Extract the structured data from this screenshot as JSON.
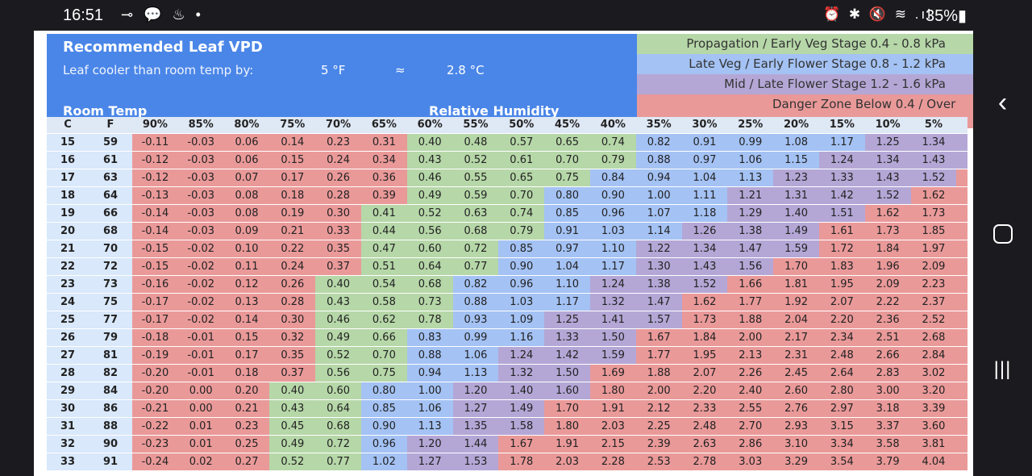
{
  "status_bar": {
    "time": "16:51",
    "left_icons": "⊸ 💬 ♨ •",
    "right_icons": "⏰ ✱ 🔇 ≋ .ıl",
    "battery": "35%▮"
  },
  "sheet": {
    "title": "Recommended Leaf VPD",
    "subtitle": "Leaf cooler than room temp by:",
    "offset_f": "5 °F",
    "approx": "≈",
    "offset_c": "2.8 °C",
    "room_temp_label": "Room Temp",
    "rh_label": "Relative Humidity",
    "legend": [
      {
        "label": "Propagation / Early Veg Stage 0.4 - 0.8 kPa",
        "color": "#b6d7a8"
      },
      {
        "label": "Late Veg / Early Flower Stage 0.8 - 1.2 kPa",
        "color": "#a4c2f4"
      },
      {
        "label": "Mid / Late Flower Stage 1.2 - 1.6 kPa",
        "color": "#b4a7d6"
      },
      {
        "label": "Danger Zone  Below 0.4 / Over",
        "color": "#ea9999"
      }
    ],
    "col_c": "C",
    "col_f": "F",
    "humidity": [
      "90%",
      "85%",
      "80%",
      "75%",
      "70%",
      "65%",
      "60%",
      "55%",
      "50%",
      "45%",
      "40%",
      "35%",
      "30%",
      "25%",
      "20%",
      "15%",
      "10%",
      "5%"
    ],
    "rows": [
      {
        "c": "15",
        "f": "59",
        "v": [
          "-0.11",
          "-0.03",
          "0.06",
          "0.14",
          "0.23",
          "0.31",
          "0.40",
          "0.48",
          "0.57",
          "0.65",
          "0.74",
          "0.82",
          "0.91",
          "0.99",
          "1.08",
          "1.17",
          "1.25",
          "1.34"
        ],
        "z": "rrrrrrrgggggbbbbppppp"
      },
      {
        "c": "16",
        "f": "61",
        "v": [
          "-0.12",
          "-0.03",
          "0.06",
          "0.15",
          "0.24",
          "0.34",
          "0.43",
          "0.52",
          "0.61",
          "0.70",
          "0.79",
          "0.88",
          "0.97",
          "1.06",
          "1.15",
          "1.24",
          "1.34",
          "1.43"
        ],
        "z": "rrrrrrggggggbbbbppppp"
      },
      {
        "c": "17",
        "f": "63",
        "v": [
          "-0.12",
          "-0.03",
          "0.07",
          "0.17",
          "0.26",
          "0.36",
          "0.46",
          "0.55",
          "0.65",
          "0.75",
          "0.84",
          "0.94",
          "1.04",
          "1.13",
          "1.23",
          "1.33",
          "1.43",
          "1.52"
        ],
        "z": "rrrrrrgggggbbbbbppppp"
      },
      {
        "c": "18",
        "f": "64",
        "v": [
          "-0.13",
          "-0.03",
          "0.08",
          "0.18",
          "0.28",
          "0.39",
          "0.49",
          "0.59",
          "0.70",
          "0.80",
          "0.90",
          "1.00",
          "1.11",
          "1.21",
          "1.31",
          "1.42",
          "1.52",
          "1.62"
        ],
        "z": "rrrrrrggggbbbbbpppppr"
      },
      {
        "c": "19",
        "f": "66",
        "v": [
          "-0.14",
          "-0.03",
          "0.08",
          "0.19",
          "0.30",
          "0.41",
          "0.52",
          "0.63",
          "0.74",
          "0.85",
          "0.96",
          "1.07",
          "1.18",
          "1.29",
          "1.40",
          "1.51",
          "1.62",
          "1.73"
        ],
        "z": "rrrrrggggbbbbbppppprr"
      },
      {
        "c": "20",
        "f": "68",
        "v": [
          "-0.14",
          "-0.03",
          "0.09",
          "0.21",
          "0.33",
          "0.44",
          "0.56",
          "0.68",
          "0.79",
          "0.91",
          "1.03",
          "1.14",
          "1.26",
          "1.38",
          "1.49",
          "1.61",
          "1.73",
          "1.85"
        ],
        "z": "rrrrrggggbbbbppppprrr"
      },
      {
        "c": "21",
        "f": "70",
        "v": [
          "-0.15",
          "-0.02",
          "0.10",
          "0.22",
          "0.35",
          "0.47",
          "0.60",
          "0.72",
          "0.85",
          "0.97",
          "1.10",
          "1.22",
          "1.34",
          "1.47",
          "1.59",
          "1.72",
          "1.84",
          "1.97"
        ],
        "z": "rrrrrggggbbbpppprrrr"
      },
      {
        "c": "22",
        "f": "72",
        "v": [
          "-0.15",
          "-0.02",
          "0.11",
          "0.24",
          "0.37",
          "0.51",
          "0.64",
          "0.77",
          "0.90",
          "1.04",
          "1.17",
          "1.30",
          "1.43",
          "1.56",
          "1.70",
          "1.83",
          "1.96",
          "2.09"
        ],
        "z": "rrrrrgggbbbbpppprrrrr"
      },
      {
        "c": "23",
        "f": "73",
        "v": [
          "-0.16",
          "-0.02",
          "0.12",
          "0.26",
          "0.40",
          "0.54",
          "0.68",
          "0.82",
          "0.96",
          "1.10",
          "1.24",
          "1.38",
          "1.52",
          "1.66",
          "1.81",
          "1.95",
          "2.09",
          "2.23"
        ],
        "z": "rrrrgggbbbbppprrrrr"
      },
      {
        "c": "24",
        "f": "75",
        "v": [
          "-0.17",
          "-0.02",
          "0.13",
          "0.28",
          "0.43",
          "0.58",
          "0.73",
          "0.88",
          "1.03",
          "1.17",
          "1.32",
          "1.47",
          "1.62",
          "1.77",
          "1.92",
          "2.07",
          "2.22",
          "2.37"
        ],
        "z": "rrrrgggbbbppprrrrrr"
      },
      {
        "c": "25",
        "f": "77",
        "v": [
          "-0.17",
          "-0.02",
          "0.14",
          "0.30",
          "0.46",
          "0.62",
          "0.78",
          "0.93",
          "1.09",
          "1.25",
          "1.41",
          "1.57",
          "1.73",
          "1.88",
          "2.04",
          "2.20",
          "2.36",
          "2.52"
        ],
        "z": "rrrrgggbbbppprrrrrr"
      },
      {
        "c": "26",
        "f": "79",
        "v": [
          "-0.18",
          "-0.01",
          "0.15",
          "0.32",
          "0.49",
          "0.66",
          "0.83",
          "0.99",
          "1.16",
          "1.33",
          "1.50",
          "1.67",
          "1.84",
          "2.00",
          "2.17",
          "2.34",
          "2.51",
          "2.68"
        ],
        "z": "rrrrggbbbpppprrrrrr"
      },
      {
        "c": "27",
        "f": "81",
        "v": [
          "-0.19",
          "-0.01",
          "0.17",
          "0.35",
          "0.52",
          "0.70",
          "0.88",
          "1.06",
          "1.24",
          "1.42",
          "1.59",
          "1.77",
          "1.95",
          "2.13",
          "2.31",
          "2.48",
          "2.66",
          "2.84"
        ],
        "z": "rrrrggbbbpppprrrrrr"
      },
      {
        "c": "28",
        "f": "82",
        "v": [
          "-0.20",
          "-0.01",
          "0.18",
          "0.37",
          "0.56",
          "0.75",
          "0.94",
          "1.13",
          "1.32",
          "1.50",
          "1.69",
          "1.88",
          "2.07",
          "2.26",
          "2.45",
          "2.64",
          "2.83",
          "3.02"
        ],
        "z": "rrrrggbbpprrrrrrrr"
      },
      {
        "c": "29",
        "f": "84",
        "v": [
          "-0.20",
          "0.00",
          "0.20",
          "0.40",
          "0.60",
          "0.80",
          "1.00",
          "1.20",
          "1.40",
          "1.60",
          "1.80",
          "2.00",
          "2.20",
          "2.40",
          "2.60",
          "2.80",
          "3.00",
          "3.20"
        ],
        "z": "rrrrggbbbpprrrrrrr"
      },
      {
        "c": "30",
        "f": "86",
        "v": [
          "-0.21",
          "0.00",
          "0.21",
          "0.43",
          "0.64",
          "0.85",
          "1.06",
          "1.27",
          "1.49",
          "1.70",
          "1.91",
          "2.12",
          "2.33",
          "2.55",
          "2.76",
          "2.97",
          "3.18",
          "3.39"
        ],
        "z": "rrrgggbbpprrrrrrrr"
      },
      {
        "c": "31",
        "f": "88",
        "v": [
          "-0.22",
          "0.01",
          "0.23",
          "0.45",
          "0.68",
          "0.90",
          "1.13",
          "1.35",
          "1.58",
          "1.80",
          "2.03",
          "2.25",
          "2.48",
          "2.70",
          "2.93",
          "3.15",
          "3.37",
          "3.60"
        ],
        "z": "rrrgggbbpprrrrrrrr"
      },
      {
        "c": "32",
        "f": "90",
        "v": [
          "-0.23",
          "0.01",
          "0.25",
          "0.49",
          "0.72",
          "0.96",
          "1.20",
          "1.44",
          "1.67",
          "1.91",
          "2.15",
          "2.39",
          "2.63",
          "2.86",
          "3.10",
          "3.34",
          "3.58",
          "3.81"
        ],
        "z": "rrrgggbbprrrrrrrrr"
      },
      {
        "c": "33",
        "f": "91",
        "v": [
          "-0.24",
          "0.02",
          "0.27",
          "0.52",
          "0.77",
          "1.02",
          "1.27",
          "1.53",
          "1.78",
          "2.03",
          "2.28",
          "2.53",
          "2.78",
          "3.03",
          "3.29",
          "3.54",
          "3.79",
          "4.04"
        ],
        "z": "rrrggbppprrrrrrrrr"
      }
    ]
  }
}
